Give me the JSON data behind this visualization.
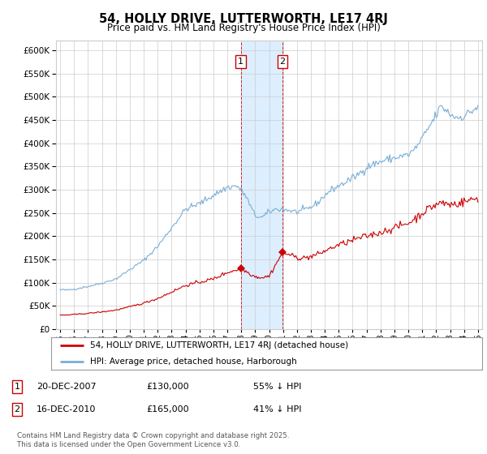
{
  "title": "54, HOLLY DRIVE, LUTTERWORTH, LE17 4RJ",
  "subtitle": "Price paid vs. HM Land Registry's House Price Index (HPI)",
  "ylim": [
    0,
    620000
  ],
  "yticks": [
    0,
    50000,
    100000,
    150000,
    200000,
    250000,
    300000,
    350000,
    400000,
    450000,
    500000,
    550000,
    600000
  ],
  "xmin": 1994.7,
  "xmax": 2025.3,
  "marker1_x": 2007.97,
  "marker1_y": 130000,
  "marker2_x": 2010.97,
  "marker2_y": 165000,
  "shade_x1": 2007.97,
  "shade_x2": 2010.97,
  "legend_label_red": "54, HOLLY DRIVE, LUTTERWORTH, LE17 4RJ (detached house)",
  "legend_label_blue": "HPI: Average price, detached house, Harborough",
  "annotation1_date": "20-DEC-2007",
  "annotation1_price": "£130,000",
  "annotation1_hpi": "55% ↓ HPI",
  "annotation2_date": "16-DEC-2010",
  "annotation2_price": "£165,000",
  "annotation2_hpi": "41% ↓ HPI",
  "footer": "Contains HM Land Registry data © Crown copyright and database right 2025.\nThis data is licensed under the Open Government Licence v3.0.",
  "red_color": "#cc0000",
  "blue_color": "#7aaed6",
  "shade_color": "#ddeeff",
  "grid_color": "#cccccc",
  "bg_color": "#ffffff"
}
